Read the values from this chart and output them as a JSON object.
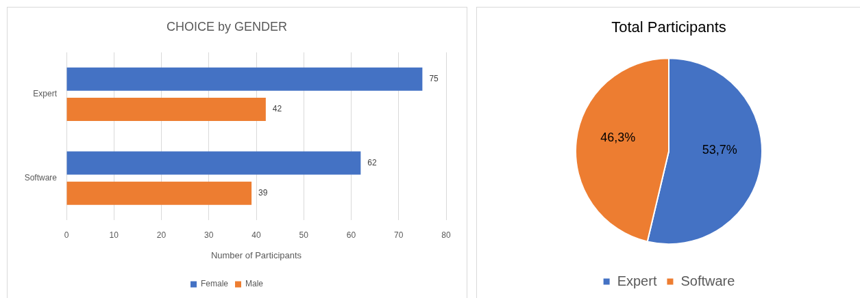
{
  "chart_data": [
    {
      "type": "bar",
      "orientation": "horizontal",
      "title": "CHOICE by GENDER",
      "xlabel": "Number of Participants",
      "categories": [
        "Expert",
        "Software"
      ],
      "series": [
        {
          "name": "Female",
          "color": "#4472c4",
          "values": [
            75,
            62
          ]
        },
        {
          "name": "Male",
          "color": "#ed7d31",
          "values": [
            42,
            39
          ]
        }
      ],
      "xlim": [
        0,
        80
      ],
      "xticks": [
        0,
        10,
        20,
        30,
        40,
        50,
        60,
        70,
        80
      ],
      "grid": "x",
      "legend": "bottom",
      "data_labels": true
    },
    {
      "type": "pie",
      "title": "Total Participants",
      "categories": [
        "Expert",
        "Software"
      ],
      "values": [
        53.7,
        46.3
      ],
      "colors": [
        "#4472c4",
        "#ed7d31"
      ],
      "value_labels": [
        "53,7%",
        "46,3%"
      ],
      "legend": "bottom"
    }
  ]
}
